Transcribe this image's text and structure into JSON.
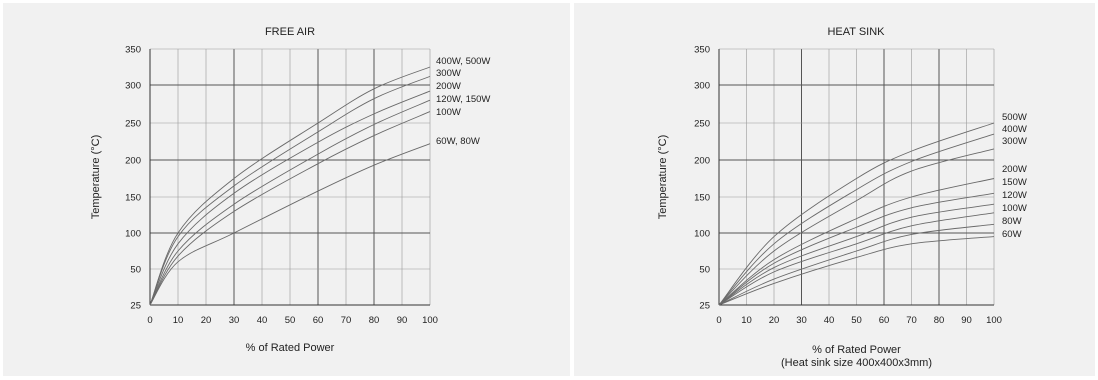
{
  "chart_data": [
    {
      "type": "line",
      "title": "FREE AIR",
      "xlabel": "% of Rated Power",
      "xlabel2": "",
      "ylabel": "Temperature (°C)",
      "xticks": [
        0,
        10,
        20,
        30,
        40,
        50,
        60,
        70,
        80,
        90,
        100
      ],
      "yticks": [
        25,
        50,
        100,
        150,
        200,
        250,
        300,
        350
      ],
      "xlim": [
        0,
        100
      ],
      "grid": true,
      "series": [
        {
          "name": "400W, 500W",
          "x": [
            0,
            10,
            30,
            60,
            80,
            100
          ],
          "y": [
            25,
            100,
            175,
            250,
            295,
            325
          ]
        },
        {
          "name": "300W",
          "x": [
            0,
            10,
            30,
            60,
            80,
            100
          ],
          "y": [
            25,
            95,
            165,
            238,
            282,
            312
          ]
        },
        {
          "name": "200W",
          "x": [
            0,
            10,
            30,
            60,
            80,
            100
          ],
          "y": [
            25,
            85,
            155,
            224,
            262,
            292
          ]
        },
        {
          "name": "120W, 150W",
          "x": [
            0,
            10,
            30,
            60,
            80,
            100
          ],
          "y": [
            25,
            75,
            140,
            208,
            248,
            280
          ]
        },
        {
          "name": "100W",
          "x": [
            0,
            10,
            30,
            60,
            80,
            100
          ],
          "y": [
            25,
            68,
            130,
            195,
            233,
            265
          ]
        },
        {
          "name": "60W, 80W",
          "x": [
            0,
            10,
            30,
            60,
            80,
            100
          ],
          "y": [
            25,
            60,
            100,
            158,
            193,
            222
          ]
        }
      ]
    },
    {
      "type": "line",
      "title": "HEAT SINK",
      "xlabel": "% of Rated Power",
      "xlabel2": "(Heat sink size 400x400x3mm)",
      "ylabel": "Temperature (°C)",
      "xticks": [
        0,
        10,
        20,
        30,
        40,
        50,
        60,
        70,
        80,
        90,
        100
      ],
      "yticks": [
        25,
        50,
        100,
        150,
        200,
        250,
        300,
        350
      ],
      "xlim": [
        0,
        100
      ],
      "grid": true,
      "series": [
        {
          "name": "500W",
          "x": [
            0,
            20,
            50,
            70,
            100
          ],
          "y": [
            25,
            95,
            175,
            212,
            250
          ]
        },
        {
          "name": "400W",
          "x": [
            0,
            20,
            50,
            70,
            100
          ],
          "y": [
            25,
            85,
            160,
            198,
            235
          ]
        },
        {
          "name": "300W",
          "x": [
            0,
            20,
            50,
            70,
            100
          ],
          "y": [
            25,
            75,
            145,
            185,
            215
          ]
        },
        {
          "name": "200W",
          "x": [
            0,
            20,
            50,
            70,
            100
          ],
          "y": [
            25,
            63,
            120,
            150,
            175
          ]
        },
        {
          "name": "150W",
          "x": [
            0,
            20,
            50,
            70,
            100
          ],
          "y": [
            25,
            58,
            108,
            135,
            155
          ]
        },
        {
          "name": "120W",
          "x": [
            0,
            20,
            50,
            70,
            100
          ],
          "y": [
            25,
            52,
            95,
            122,
            140
          ]
        },
        {
          "name": "100W",
          "x": [
            0,
            20,
            50,
            70,
            100
          ],
          "y": [
            25,
            48,
            85,
            110,
            128
          ]
        },
        {
          "name": "80W",
          "x": [
            0,
            20,
            50,
            70,
            100
          ],
          "y": [
            25,
            43,
            75,
            98,
            112
          ]
        },
        {
          "name": "60W",
          "x": [
            0,
            20,
            50,
            70,
            100
          ],
          "y": [
            25,
            40,
            66,
            85,
            95
          ]
        }
      ]
    }
  ]
}
